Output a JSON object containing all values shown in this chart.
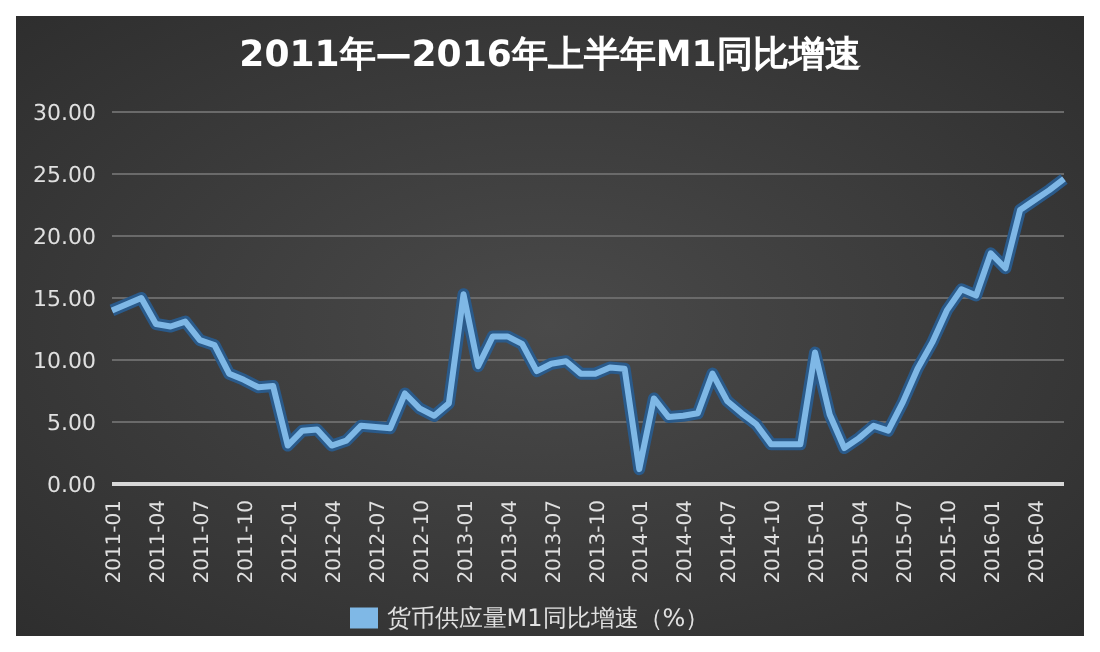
{
  "chart_data": {
    "type": "line",
    "title": "2011年—2016年上半年M1同比增速",
    "categories": [
      "2011-01",
      null,
      null,
      "2011-04",
      null,
      null,
      "2011-07",
      null,
      null,
      "2011-10",
      null,
      null,
      "2012-01",
      null,
      null,
      "2012-04",
      null,
      null,
      "2012-07",
      null,
      null,
      "2012-10",
      null,
      null,
      "2013-01",
      null,
      null,
      "2013-04",
      null,
      null,
      "2013-07",
      null,
      null,
      "2013-10",
      null,
      null,
      "2014-01",
      null,
      null,
      "2014-04",
      null,
      null,
      "2014-07",
      null,
      null,
      "2014-10",
      null,
      null,
      "2015-01",
      null,
      null,
      "2015-04",
      null,
      null,
      "2015-07",
      null,
      null,
      "2015-10",
      null,
      null,
      "2016-01",
      null,
      null,
      "2016-04",
      null,
      null
    ],
    "series": [
      {
        "name": "货币供应量M1同比增速（%）",
        "color": "#7fb8e6",
        "values": [
          14.0,
          14.5,
          15.0,
          12.9,
          12.7,
          13.1,
          11.6,
          11.2,
          8.9,
          8.4,
          7.8,
          7.9,
          3.1,
          4.3,
          4.4,
          3.1,
          3.5,
          4.7,
          4.6,
          4.5,
          7.3,
          6.1,
          5.5,
          6.5,
          15.3,
          9.5,
          11.9,
          11.9,
          11.3,
          9.1,
          9.7,
          9.9,
          8.9,
          8.9,
          9.4,
          9.3,
          1.2,
          6.9,
          5.4,
          5.5,
          5.7,
          8.9,
          6.7,
          5.7,
          4.8,
          3.2,
          3.2,
          3.2,
          10.6,
          5.6,
          2.9,
          3.7,
          4.7,
          4.3,
          6.6,
          9.3,
          11.4,
          14.0,
          15.7,
          15.2,
          18.6,
          17.4,
          22.1,
          22.9,
          23.7,
          24.6
        ]
      }
    ],
    "ylim": [
      0,
      30
    ],
    "yticks": [
      {
        "value": 0,
        "label": "0.00"
      },
      {
        "value": 5,
        "label": "5.00"
      },
      {
        "value": 10,
        "label": "10.00"
      },
      {
        "value": 15,
        "label": "15.00"
      },
      {
        "value": 20,
        "label": "20.00"
      },
      {
        "value": 25,
        "label": "25.00"
      },
      {
        "value": 30,
        "label": "30.00"
      }
    ],
    "grid": "y",
    "legend": "bottom",
    "marker": "none",
    "line_style": "solid"
  }
}
